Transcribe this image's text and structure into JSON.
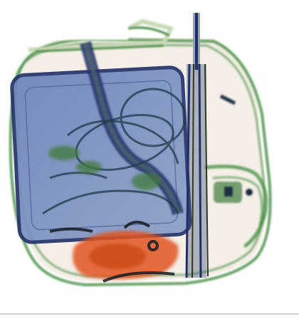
{
  "image": {
    "kind": "x-ray baggage scan",
    "colors": {
      "background": "#ffffff",
      "organic": "#e0531f",
      "inorganic_mixed": "#3f8a3c",
      "metal_dense": "#1f2f6b",
      "laptop_fill": "#7b8fbf",
      "outline_light": "#c8d9b6",
      "bag_tint": "#f4ede6"
    },
    "objects": [
      "bag-outline",
      "laptop",
      "handle-rods",
      "cables",
      "organic-mass",
      "side-pocket"
    ]
  }
}
